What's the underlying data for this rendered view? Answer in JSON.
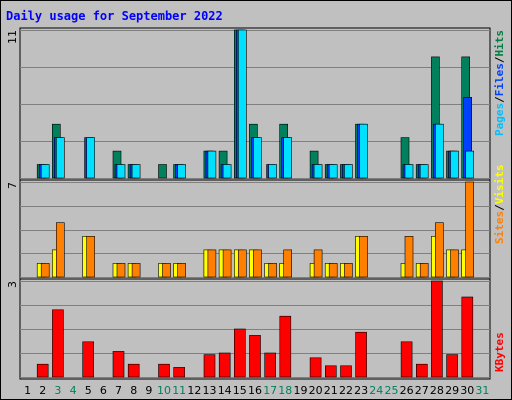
{
  "chart_data": {
    "type": "bar",
    "title": "Daily usage for September 2022",
    "days": [
      "1",
      "2",
      "3",
      "4",
      "5",
      "6",
      "7",
      "8",
      "9",
      "10",
      "11",
      "12",
      "13",
      "14",
      "15",
      "16",
      "17",
      "18",
      "19",
      "20",
      "21",
      "22",
      "23",
      "24",
      "25",
      "26",
      "27",
      "28",
      "29",
      "30",
      "31"
    ],
    "weekend_days": [
      3,
      4,
      10,
      11,
      17,
      18,
      24,
      25,
      31
    ],
    "panels": [
      {
        "id": "hits-files-pages",
        "ymax": 11,
        "ymax_label": "11",
        "legend": [
          {
            "label": "Pages",
            "color": "#00c0ff"
          },
          {
            "label": "Files",
            "color": "#0040ff"
          },
          {
            "label": "Hits",
            "color": "#008040"
          }
        ],
        "series": [
          {
            "name": "Hits",
            "color": "#00805c",
            "values": [
              0,
              1,
              4,
              0,
              0,
              0,
              2,
              1,
              0,
              1,
              1,
              0,
              2,
              2,
              11,
              4,
              0,
              4,
              0,
              2,
              1,
              1,
              4,
              0,
              0,
              3,
              1,
              9,
              2,
              9,
              0
            ]
          },
          {
            "name": "Files",
            "color": "#0040ff",
            "values": [
              0,
              1,
              3,
              0,
              3,
              0,
              1,
              1,
              0,
              0,
              1,
              0,
              2,
              1,
              11,
              3,
              1,
              3,
              0,
              1,
              1,
              1,
              4,
              0,
              0,
              1,
              1,
              4,
              2,
              6,
              0
            ]
          },
          {
            "name": "Pages",
            "color": "#00e0ff",
            "values": [
              0,
              1,
              3,
              0,
              3,
              0,
              1,
              1,
              0,
              0,
              1,
              0,
              2,
              1,
              11,
              3,
              1,
              3,
              0,
              1,
              1,
              1,
              4,
              0,
              0,
              1,
              1,
              4,
              2,
              2,
              0
            ]
          }
        ]
      },
      {
        "id": "visits-sites",
        "ymax": 7,
        "ymax_label": "7",
        "legend": [
          {
            "label": "Sites",
            "color": "#ff8000"
          },
          {
            "label": "Visits",
            "color": "#ffff00"
          }
        ],
        "series": [
          {
            "name": "Visits",
            "color": "#ffff00",
            "values": [
              0,
              1,
              2,
              0,
              3,
              0,
              1,
              1,
              0,
              1,
              1,
              0,
              2,
              2,
              2,
              2,
              1,
              1,
              0,
              1,
              1,
              1,
              3,
              0,
              0,
              1,
              1,
              3,
              2,
              2,
              0
            ]
          },
          {
            "name": "Sites",
            "color": "#ff8000",
            "values": [
              0,
              1,
              4,
              0,
              3,
              0,
              1,
              1,
              0,
              1,
              1,
              0,
              2,
              2,
              2,
              2,
              1,
              2,
              0,
              2,
              1,
              1,
              3,
              0,
              0,
              3,
              1,
              4,
              2,
              7,
              0
            ]
          }
        ]
      },
      {
        "id": "kbytes",
        "ymax": 3,
        "ymax_label": "3",
        "legend": [
          {
            "label": "KBytes",
            "color": "#ff0000"
          }
        ],
        "series": [
          {
            "name": "KBytes",
            "color": "#ff0000",
            "values": [
              0,
              0.4,
              2.1,
              0,
              1.1,
              0,
              0.8,
              0.4,
              0,
              0.4,
              0.3,
              0,
              0.7,
              0.75,
              1.5,
              1.3,
              0.75,
              1.9,
              0,
              0.6,
              0.35,
              0.35,
              1.4,
              0,
              0,
              1.1,
              0.4,
              3,
              0.7,
              2.5,
              0
            ]
          }
        ]
      }
    ]
  },
  "side_labels": {
    "pages": "Pages",
    "files": "Files",
    "hits": "Hits",
    "sites": "Sites",
    "visits": "Visits",
    "kbytes": "KBytes"
  },
  "colors": {
    "background": "#c0c0c0",
    "title": "#0000ff",
    "weekday_label": "#000000",
    "weekend_label": "#00805c",
    "grid": "#808080"
  }
}
